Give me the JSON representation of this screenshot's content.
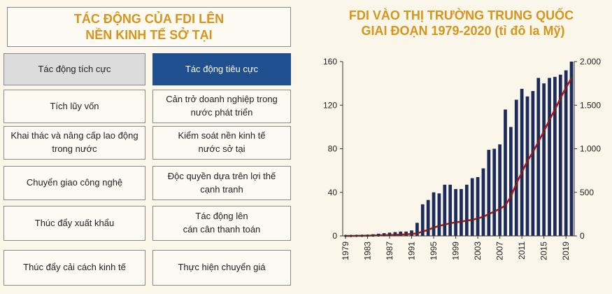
{
  "panel": {
    "title": "TÁC ĐỘNG CỦA FDI LÊN\nNỀN KINH TẾ SỞ TẠI",
    "headers": [
      "Tác động tích cực",
      "Tác động tiêu cực"
    ],
    "rows": [
      [
        "Tích lũy vốn",
        "Cản trở doanh nghiệp trong\nnước phát triển"
      ],
      [
        "Khai thác và nâng cấp lao động\ntrong nước",
        "Kiểm soát nền kinh tế\nnước sở tại"
      ],
      [
        "Chuyển giao công nghệ",
        "Độc quyền dựa trên lợi thế\ncạnh tranh"
      ],
      [
        "Thúc đẩy xuất khẩu",
        "Tác động lên\ncán cân thanh toán"
      ],
      [
        "Thúc đẩy cải cách kinh tế",
        "Thực hiện chuyển giá"
      ]
    ]
  },
  "chart_data": {
    "type": "bar",
    "title": "FDI VÀO THỊ TRƯỜNG TRUNG QUỐC\nGIAI ĐOẠN 1979-2020 (tỉ đô la Mỹ)",
    "x": [
      1979,
      1980,
      1981,
      1982,
      1983,
      1984,
      1985,
      1986,
      1987,
      1988,
      1989,
      1990,
      1991,
      1992,
      1993,
      1994,
      1995,
      1996,
      1997,
      1998,
      1999,
      2000,
      2001,
      2002,
      2003,
      2004,
      2005,
      2006,
      2007,
      2008,
      2009,
      2010,
      2011,
      2012,
      2013,
      2014,
      2015,
      2016,
      2017,
      2018,
      2019,
      2020
    ],
    "xlim": [
      1978.5,
      2020.5
    ],
    "xticks": [
      1979,
      1983,
      1987,
      1991,
      1995,
      1999,
      2003,
      2007,
      2011,
      2015,
      2019
    ],
    "series": [
      {
        "type": "bar",
        "color": "#1c2b5c",
        "values": [
          0,
          0,
          0,
          0.5,
          1,
          1.5,
          2,
          2.5,
          3,
          3.5,
          4,
          4,
          5,
          12,
          29,
          33,
          40,
          39,
          47,
          47,
          43,
          43,
          47,
          53,
          54,
          62,
          79,
          80,
          84,
          116,
          100,
          125,
          135,
          128,
          133,
          145,
          140,
          145,
          146,
          148,
          152,
          160
        ]
      },
      {
        "type": "line",
        "axis": "y2",
        "color": "#b3111b",
        "values": [
          0,
          0,
          1,
          2,
          3,
          4,
          6,
          8,
          10,
          12,
          15,
          18,
          22,
          30,
          50,
          70,
          95,
          115,
          130,
          145,
          155,
          165,
          175,
          185,
          200,
          220,
          250,
          280,
          310,
          350,
          450,
          600,
          730,
          860,
          960,
          1080,
          1200,
          1330,
          1450,
          1580,
          1700,
          1810
        ]
      }
    ],
    "ylim": [
      0,
      160
    ],
    "yticks": [
      0,
      40,
      80,
      120,
      160
    ],
    "y2lim": [
      0,
      2000
    ],
    "y2ticks": [
      0,
      500,
      {
        "value": 1000,
        "label": "1.000"
      },
      {
        "value": 1500,
        "label": "1.500"
      },
      {
        "value": 2000,
        "label": "2.000"
      }
    ]
  }
}
